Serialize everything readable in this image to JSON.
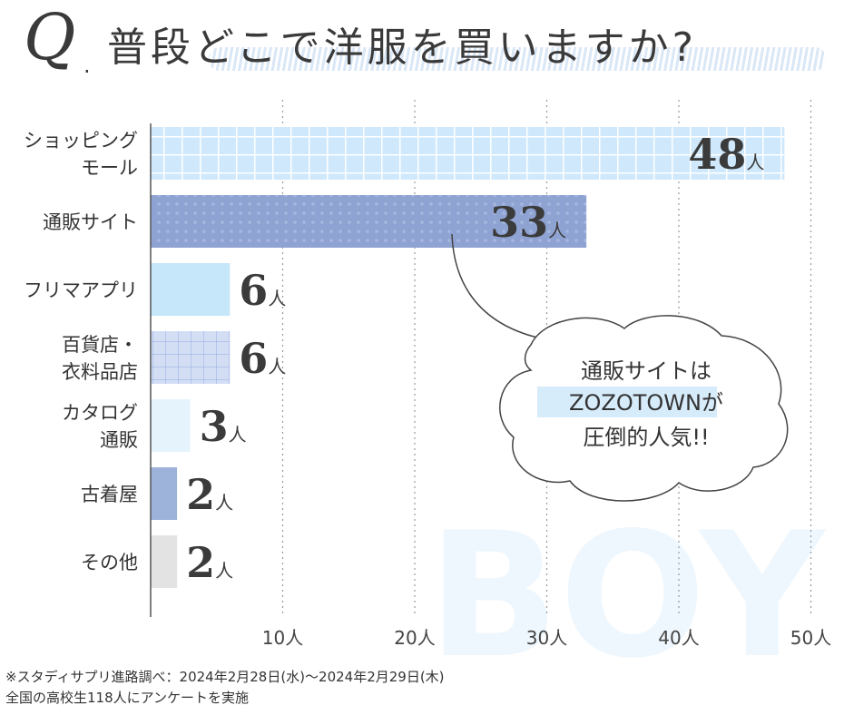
{
  "title": {
    "q_mark": "Q",
    "dot": ".",
    "text": "普段どこで洋服を買いますか?"
  },
  "watermark": "BOY",
  "annotation": {
    "lines": [
      "通販サイトは",
      "ZOZOTOWNが",
      "圧倒的人気!!"
    ]
  },
  "footnote": {
    "line1": "※スタディサプリ進路調べ：2024年2月28日(水)～2024年2月29日(木)",
    "line2": "全国の高校生118人にアンケートを実施"
  },
  "chart_data": {
    "type": "bar",
    "orientation": "horizontal",
    "categories": [
      [
        "ショッピング",
        "モール"
      ],
      [
        "通販サイト"
      ],
      [
        "フリマアプリ"
      ],
      [
        "百貨店・",
        "衣料品店"
      ],
      [
        "カタログ",
        "通販"
      ],
      [
        "古着屋"
      ],
      [
        "その他"
      ]
    ],
    "values": [
      48,
      33,
      6,
      6,
      3,
      2,
      2
    ],
    "value_unit": "人",
    "xlim": [
      0,
      50
    ],
    "xticks": [
      10,
      20,
      30,
      40,
      50
    ],
    "xtick_labels": [
      "10人",
      "20人",
      "30人",
      "40人",
      "50人"
    ],
    "grid": "vertical-dotted",
    "colors": [
      "#cfe8fb",
      "#8fa3d3",
      "#c6e6fa",
      "#d3def5",
      "#e5f3fd",
      "#9eb3da",
      "#e3e3e3"
    ]
  }
}
